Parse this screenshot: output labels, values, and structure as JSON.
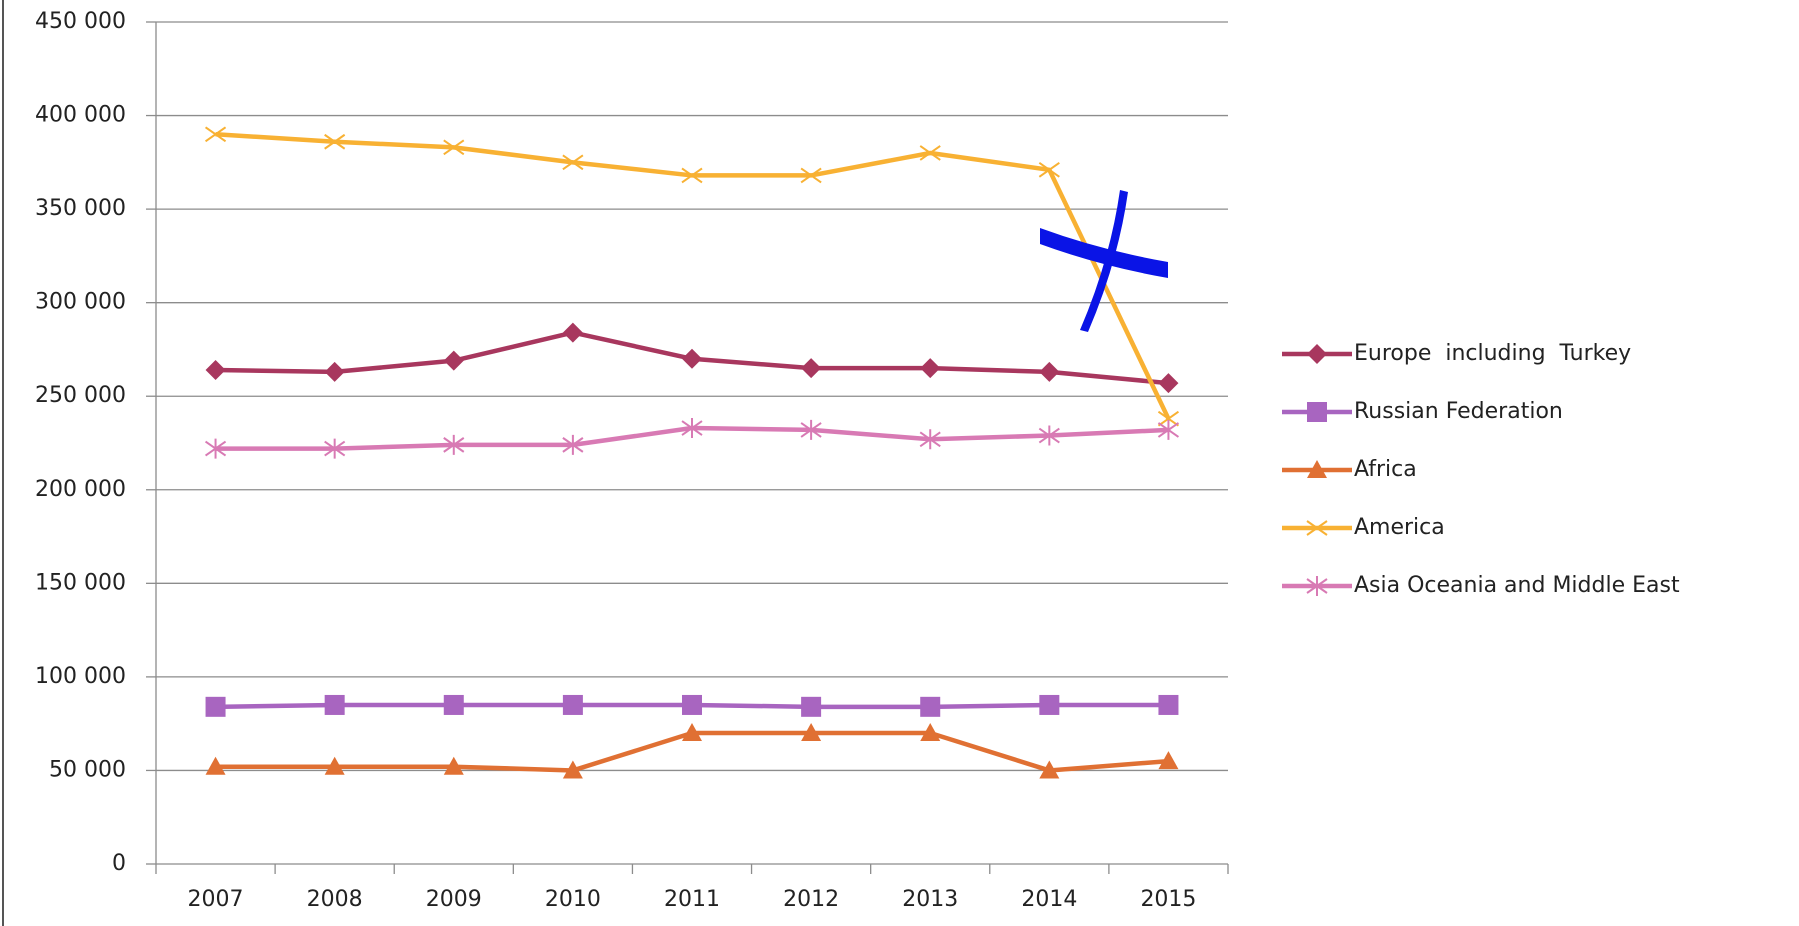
{
  "chart_data": {
    "type": "line",
    "categories": [
      "2007",
      "2008",
      "2009",
      "2010",
      "2011",
      "2012",
      "2013",
      "2014",
      "2015"
    ],
    "series": [
      {
        "name": "Europe  including  Turkey",
        "color": "#a8375e",
        "marker": "diamond",
        "values": [
          264000,
          263000,
          269000,
          284000,
          270000,
          265000,
          265000,
          263000,
          257000
        ]
      },
      {
        "name": "Russian Federation",
        "color": "#a865c0",
        "marker": "square",
        "values": [
          84000,
          85000,
          85000,
          85000,
          85000,
          84000,
          84000,
          85000,
          85000
        ]
      },
      {
        "name": "Africa",
        "color": "#e07033",
        "marker": "triangle",
        "values": [
          52000,
          52000,
          52000,
          50000,
          70000,
          70000,
          70000,
          50000,
          55000
        ]
      },
      {
        "name": "America",
        "color": "#f8b133",
        "marker": "x",
        "values": [
          390000,
          386000,
          383000,
          375000,
          368000,
          368000,
          380000,
          371000,
          238000
        ]
      },
      {
        "name": "Asia Oceania and Middle East",
        "color": "#d87ab4",
        "marker": "star",
        "values": [
          222000,
          222000,
          224000,
          224000,
          233000,
          232000,
          227000,
          229000,
          232000
        ]
      }
    ],
    "ylim": [
      0,
      450000
    ],
    "yticks": [
      0,
      {
        "value": 50000,
        "label": "50 000"
      },
      {
        "value": 100000,
        "label": "100 000"
      },
      {
        "value": 150000,
        "label": "150 000"
      },
      {
        "value": 200000,
        "label": "200 000"
      },
      {
        "value": 250000,
        "label": "250 000"
      },
      {
        "value": 300000,
        "label": "300 000"
      },
      {
        "value": 350000,
        "label": "350 000"
      },
      {
        "value": 400000,
        "label": "400 000"
      },
      {
        "value": 450000,
        "label": "450 000"
      }
    ],
    "grid": true,
    "legend": "right"
  }
}
